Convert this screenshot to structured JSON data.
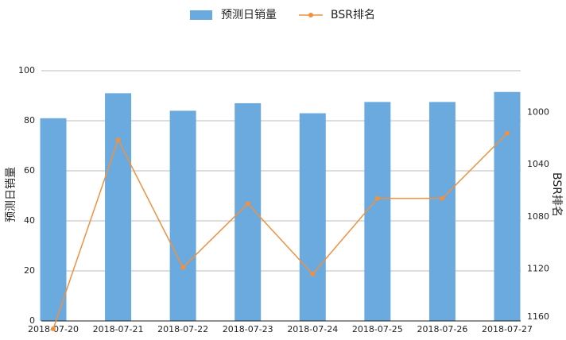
{
  "chart_data": {
    "type": "bar-line",
    "categories": [
      "2018-07-20",
      "2018-07-21",
      "2018-07-22",
      "2018-07-23",
      "2018-07-24",
      "2018-07-25",
      "2018-07-26",
      "2018-07-27"
    ],
    "series": [
      {
        "name": "预测日销量",
        "type": "bar",
        "color": "#6aaade",
        "values": [
          81,
          91,
          84,
          87,
          83,
          87.5,
          87.5,
          91.5
        ]
      },
      {
        "name": "BSR排名",
        "type": "line",
        "axis": "y2",
        "color": "#f0913f",
        "values": [
          1166,
          1021,
          1119,
          1070,
          1124,
          1066,
          1066,
          1016
        ]
      }
    ],
    "ylabel": "预测日销量",
    "y2label": "BSR排名",
    "ylim": [
      0,
      100
    ],
    "yticks": [
      0,
      20,
      40,
      60,
      80,
      100
    ],
    "y2lim": [
      1160,
      968
    ],
    "y2ticks": [
      1000,
      1040,
      1080,
      1120,
      1160
    ],
    "grid": true,
    "legend": "top"
  }
}
